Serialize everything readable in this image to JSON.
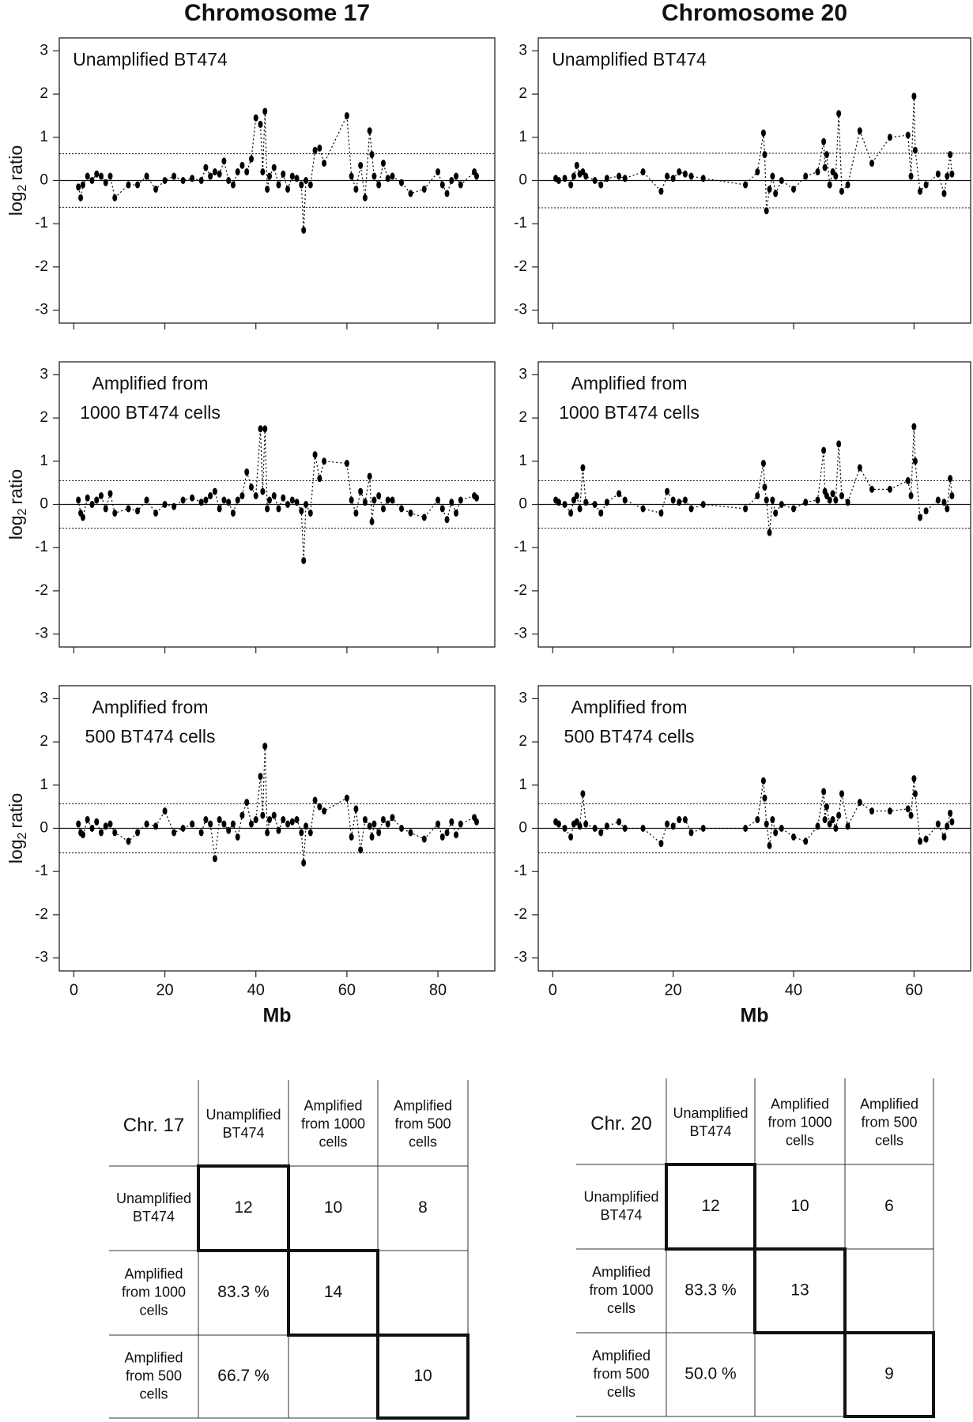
{
  "column_titles": [
    "Chromosome 17",
    "Chromosome 20"
  ],
  "chart_data": [
    {
      "type": "line",
      "label_lines": [
        "Unamplified BT474"
      ],
      "ylabel_parts": [
        "log",
        "2",
        "ratio"
      ],
      "xlim": [
        -3.2,
        92.5
      ],
      "xticks": [
        0,
        20,
        40,
        60,
        80
      ],
      "show_xtick_labels": false,
      "ylim": [
        -3.3,
        3.3
      ],
      "yticks": [
        -3,
        -2,
        -1,
        0,
        1,
        2,
        3
      ],
      "baseline": 0,
      "thresholds": [
        0.62,
        -0.62
      ],
      "color": "#000000",
      "x": [
        1,
        1.5,
        2,
        3,
        4,
        5,
        6,
        7,
        8,
        9,
        12,
        14,
        16,
        18,
        20,
        22,
        24,
        26,
        28,
        29,
        30,
        31,
        32,
        33,
        34,
        35,
        36,
        37,
        38,
        39,
        40,
        41,
        41.5,
        42,
        42.5,
        43,
        44,
        45,
        46,
        47,
        48,
        49,
        50,
        50.5,
        51,
        52,
        53,
        54,
        55,
        60,
        61,
        62,
        63,
        64,
        65,
        65.5,
        66,
        67,
        68,
        69,
        70,
        72,
        74,
        77,
        80,
        81,
        82,
        83,
        84,
        85,
        88,
        88.5
      ],
      "values": [
        -0.15,
        -0.4,
        -0.1,
        0.1,
        0,
        0.15,
        0.1,
        -0.05,
        0.1,
        -0.4,
        -0.1,
        -0.1,
        0.1,
        -0.2,
        0,
        0.1,
        0,
        0.05,
        0,
        0.3,
        0.1,
        0.2,
        0.15,
        0.45,
        0,
        -0.1,
        0.2,
        0.35,
        0.2,
        0.5,
        1.45,
        1.3,
        0.2,
        1.6,
        -0.2,
        0.1,
        0.3,
        -0.1,
        0.15,
        -0.2,
        0.1,
        0.05,
        -0.1,
        -1.15,
        0,
        -0.1,
        0.7,
        0.75,
        0.4,
        1.5,
        0.1,
        -0.2,
        0.35,
        -0.4,
        1.15,
        0.6,
        0.1,
        -0.1,
        0.4,
        0.05,
        0.1,
        -0.05,
        -0.3,
        -0.2,
        0.2,
        -0.1,
        -0.3,
        0,
        0.1,
        -0.1,
        0.2,
        0.1
      ]
    },
    {
      "type": "line",
      "label_lines": [
        "Amplified from",
        "1000 BT474 cells"
      ],
      "ylabel_parts": [
        "log",
        "2",
        "ratio"
      ],
      "xlim": [
        -3.2,
        92.5
      ],
      "xticks": [
        0,
        20,
        40,
        60,
        80
      ],
      "show_xtick_labels": false,
      "ylim": [
        -3.3,
        3.3
      ],
      "yticks": [
        -3,
        -2,
        -1,
        0,
        1,
        2,
        3
      ],
      "baseline": 0,
      "thresholds": [
        0.55,
        -0.55
      ],
      "color": "#000000",
      "x": [
        1,
        1.5,
        2,
        3,
        4,
        5,
        6,
        7,
        8,
        9,
        12,
        14,
        16,
        18,
        20,
        22,
        24,
        26,
        28,
        29,
        30,
        31,
        32,
        33,
        34,
        35,
        36,
        37,
        38,
        39,
        40,
        41,
        41.5,
        42,
        42.5,
        43,
        44,
        45,
        46,
        47,
        48,
        49,
        50,
        50.5,
        51,
        52,
        53,
        54,
        55,
        60,
        61,
        62,
        63,
        64,
        65,
        65.5,
        66,
        67,
        68,
        69,
        70,
        72,
        74,
        77,
        80,
        81,
        82,
        83,
        84,
        85,
        88,
        88.5
      ],
      "values": [
        0.1,
        -0.2,
        -0.3,
        0.15,
        0,
        0.1,
        0.2,
        -0.1,
        0.25,
        -0.2,
        -0.1,
        -0.15,
        0.1,
        -0.2,
        0,
        -0.05,
        0.1,
        0.15,
        0.05,
        0.1,
        0.2,
        0.3,
        -0.1,
        0.1,
        0.05,
        -0.2,
        0.1,
        0.2,
        0.75,
        0.4,
        0.2,
        1.75,
        0.3,
        1.75,
        -0.1,
        0.1,
        0.2,
        -0.1,
        0.15,
        0,
        0.1,
        0.05,
        -0.15,
        -1.3,
        0,
        -0.2,
        1.15,
        0.6,
        1.0,
        0.95,
        0.1,
        -0.2,
        0.3,
        0.05,
        0.65,
        -0.4,
        0.1,
        0.2,
        -0.1,
        0.1,
        0.1,
        -0.1,
        -0.2,
        -0.3,
        0.1,
        -0.1,
        -0.35,
        0.05,
        -0.2,
        0.1,
        0.2,
        0.15
      ]
    },
    {
      "type": "line",
      "label_lines": [
        "Amplified from",
        "500 BT474 cells"
      ],
      "ylabel_parts": [
        "log",
        "2",
        "ratio"
      ],
      "xlabel": "Mb",
      "xlim": [
        -3.2,
        92.5
      ],
      "xticks": [
        0,
        20,
        40,
        60,
        80
      ],
      "show_xtick_labels": true,
      "ylim": [
        -3.3,
        3.3
      ],
      "yticks": [
        -3,
        -2,
        -1,
        0,
        1,
        2,
        3
      ],
      "baseline": 0,
      "thresholds": [
        0.57,
        -0.57
      ],
      "color": "#000000",
      "x": [
        1,
        1.5,
        2,
        3,
        4,
        5,
        6,
        7,
        8,
        9,
        12,
        14,
        16,
        18,
        20,
        22,
        24,
        26,
        28,
        29,
        30,
        31,
        32,
        33,
        34,
        35,
        36,
        37,
        38,
        39,
        40,
        41,
        41.5,
        42,
        42.5,
        43,
        44,
        45,
        46,
        47,
        48,
        49,
        50,
        50.5,
        51,
        52,
        53,
        54,
        55,
        60,
        61,
        62,
        63,
        64,
        65,
        65.5,
        66,
        67,
        68,
        69,
        70,
        72,
        74,
        77,
        80,
        81,
        82,
        83,
        84,
        85,
        88,
        88.5
      ],
      "values": [
        0.1,
        -0.1,
        -0.15,
        0.2,
        0,
        0.15,
        -0.1,
        0.05,
        0.1,
        -0.1,
        -0.3,
        -0.1,
        0.1,
        0.05,
        0.4,
        -0.1,
        0,
        0.1,
        -0.1,
        0.2,
        0.1,
        -0.7,
        0.2,
        0.1,
        -0.05,
        0.1,
        -0.2,
        0.3,
        0.6,
        0.1,
        0.2,
        1.2,
        0.3,
        1.9,
        -0.1,
        0.2,
        0.3,
        -0.05,
        0.2,
        0.1,
        0.15,
        0.2,
        -0.1,
        -0.8,
        0.05,
        -0.1,
        0.65,
        0.5,
        0.4,
        0.7,
        -0.2,
        0.45,
        -0.5,
        0.2,
        0.05,
        -0.2,
        0.1,
        -0.1,
        0.2,
        0.1,
        0.25,
        0,
        -0.1,
        -0.25,
        0.1,
        -0.2,
        -0.1,
        0.15,
        -0.15,
        0.1,
        0.25,
        0.15
      ]
    },
    {
      "type": "line",
      "label_lines": [
        "Unamplified BT474"
      ],
      "xlim": [
        -2.4,
        69.4
      ],
      "xticks": [
        0,
        20,
        40,
        60
      ],
      "show_xtick_labels": false,
      "ylim": [
        -3.3,
        3.3
      ],
      "yticks": [
        -3,
        -2,
        -1,
        0,
        1,
        2,
        3
      ],
      "baseline": 0,
      "thresholds": [
        0.63,
        -0.63
      ],
      "color": "#000000",
      "x": [
        0.5,
        1,
        2,
        3,
        3.5,
        4,
        4.5,
        5,
        5.5,
        7,
        8,
        9,
        11,
        12,
        15,
        18,
        19,
        20,
        21,
        22,
        23,
        25,
        32,
        34,
        35,
        35.2,
        35.5,
        36,
        36.5,
        37,
        38,
        40,
        42,
        44,
        45,
        45.2,
        45.5,
        46,
        46.5,
        47,
        47.5,
        48,
        49,
        51,
        53,
        56,
        59,
        59.5,
        60,
        60.2,
        61,
        62,
        64,
        65,
        65.5,
        66,
        66.3
      ],
      "values": [
        0.05,
        0,
        0.05,
        -0.1,
        0.1,
        0.35,
        0.15,
        0.2,
        0.1,
        0,
        -0.1,
        0.05,
        0.1,
        0.05,
        0.2,
        -0.25,
        0.1,
        0.05,
        0.2,
        0.15,
        0.1,
        0.05,
        -0.1,
        0.2,
        1.1,
        0.6,
        -0.7,
        -0.2,
        0.1,
        -0.3,
        0,
        -0.2,
        0.1,
        0.2,
        0.9,
        0.3,
        0.6,
        -0.1,
        0.2,
        0.1,
        1.55,
        -0.25,
        -0.1,
        1.15,
        0.4,
        1.0,
        1.05,
        0.1,
        1.95,
        0.7,
        -0.25,
        -0.1,
        0.15,
        -0.3,
        0.1,
        0.6,
        0.15
      ]
    },
    {
      "type": "line",
      "label_lines": [
        "Amplified from",
        "1000 BT474 cells"
      ],
      "xlim": [
        -2.4,
        69.4
      ],
      "xticks": [
        0,
        20,
        40,
        60
      ],
      "show_xtick_labels": false,
      "ylim": [
        -3.3,
        3.3
      ],
      "yticks": [
        -3,
        -2,
        -1,
        0,
        1,
        2,
        3
      ],
      "baseline": 0,
      "thresholds": [
        0.55,
        -0.55
      ],
      "color": "#000000",
      "x": [
        0.5,
        1,
        2,
        3,
        3.5,
        4,
        4.5,
        5,
        5.5,
        7,
        8,
        9,
        11,
        12,
        15,
        18,
        19,
        20,
        21,
        22,
        23,
        25,
        32,
        34,
        35,
        35.2,
        35.5,
        36,
        36.5,
        37,
        38,
        40,
        42,
        44,
        45,
        45.2,
        45.5,
        46,
        46.5,
        47,
        47.5,
        48,
        49,
        51,
        53,
        56,
        59,
        59.5,
        60,
        60.2,
        61,
        62,
        64,
        65,
        65.5,
        66,
        66.3
      ],
      "values": [
        0.1,
        0.05,
        0,
        -0.2,
        0.1,
        0.2,
        -0.1,
        0.85,
        0.05,
        0,
        -0.2,
        0.05,
        0.25,
        0.1,
        -0.1,
        -0.2,
        0.3,
        0.1,
        0.05,
        0.1,
        -0.1,
        0,
        -0.1,
        0.2,
        0.95,
        0.4,
        0.1,
        -0.65,
        0.1,
        -0.2,
        0,
        -0.1,
        0.05,
        0.1,
        1.25,
        0.3,
        0.2,
        0.1,
        0.25,
        0.1,
        1.4,
        0.2,
        0.05,
        0.85,
        0.35,
        0.35,
        0.55,
        0.2,
        1.8,
        1.0,
        -0.3,
        -0.15,
        0.1,
        0.05,
        -0.1,
        0.6,
        0.2
      ]
    },
    {
      "type": "line",
      "label_lines": [
        "Amplified from",
        "500 BT474 cells"
      ],
      "xlabel": "Mb",
      "xlim": [
        -2.4,
        69.4
      ],
      "xticks": [
        0,
        20,
        40,
        60
      ],
      "show_xtick_labels": true,
      "ylim": [
        -3.3,
        3.3
      ],
      "yticks": [
        -3,
        -2,
        -1,
        0,
        1,
        2,
        3
      ],
      "baseline": 0,
      "thresholds": [
        0.57,
        -0.57
      ],
      "color": "#000000",
      "x": [
        0.5,
        1,
        2,
        3,
        3.5,
        4,
        4.5,
        5,
        5.5,
        7,
        8,
        9,
        11,
        12,
        15,
        18,
        19,
        20,
        21,
        22,
        23,
        25,
        32,
        34,
        35,
        35.2,
        35.5,
        36,
        36.5,
        37,
        38,
        40,
        42,
        44,
        45,
        45.2,
        45.5,
        46,
        46.5,
        47,
        47.5,
        48,
        49,
        51,
        53,
        56,
        59,
        59.5,
        60,
        60.2,
        61,
        62,
        64,
        65,
        65.5,
        66,
        66.3
      ],
      "values": [
        0.15,
        0.1,
        0,
        -0.2,
        0.1,
        0.15,
        0.05,
        0.8,
        0.1,
        0,
        -0.1,
        0.05,
        0.15,
        0,
        0,
        -0.35,
        0.1,
        0.05,
        0.2,
        0.2,
        -0.1,
        0,
        0,
        0.2,
        1.1,
        0.7,
        0.1,
        -0.4,
        0.2,
        -0.1,
        0,
        -0.2,
        -0.3,
        0.05,
        0.85,
        0.2,
        0.5,
        0.1,
        0.2,
        0,
        0.3,
        0.8,
        0.05,
        0.6,
        0.4,
        0.4,
        0.45,
        0.3,
        1.15,
        0.8,
        -0.3,
        -0.25,
        0.1,
        -0.2,
        0.05,
        0.35,
        0.15
      ]
    }
  ],
  "tables": [
    {
      "corner": "Chr. 17",
      "col_headers": [
        [
          "Unamplified",
          "BT474"
        ],
        [
          "Amplified",
          "from 1000",
          "cells"
        ],
        [
          "Amplified",
          "from 500",
          "cells"
        ]
      ],
      "row_headers": [
        [
          "Unamplified",
          "BT474"
        ],
        [
          "Amplified",
          "from 1000",
          "cells"
        ],
        [
          "Amplified",
          "from 500",
          "cells"
        ]
      ],
      "cells": [
        [
          12,
          10,
          8
        ],
        [
          "83.3 %",
          14,
          null
        ],
        [
          "66.7 %",
          null,
          10
        ]
      ]
    },
    {
      "corner": "Chr. 20",
      "col_headers": [
        [
          "Unamplified",
          "BT474"
        ],
        [
          "Amplified",
          "from 1000",
          "cells"
        ],
        [
          "Amplified",
          "from 500",
          "cells"
        ]
      ],
      "row_headers": [
        [
          "Unamplified",
          "BT474"
        ],
        [
          "Amplified",
          "from 1000",
          "cells"
        ],
        [
          "Amplified",
          "from 500",
          "cells"
        ]
      ],
      "cells": [
        [
          12,
          10,
          6
        ],
        [
          "83.3 %",
          13,
          null
        ],
        [
          "50.0 %",
          null,
          9
        ]
      ]
    }
  ]
}
